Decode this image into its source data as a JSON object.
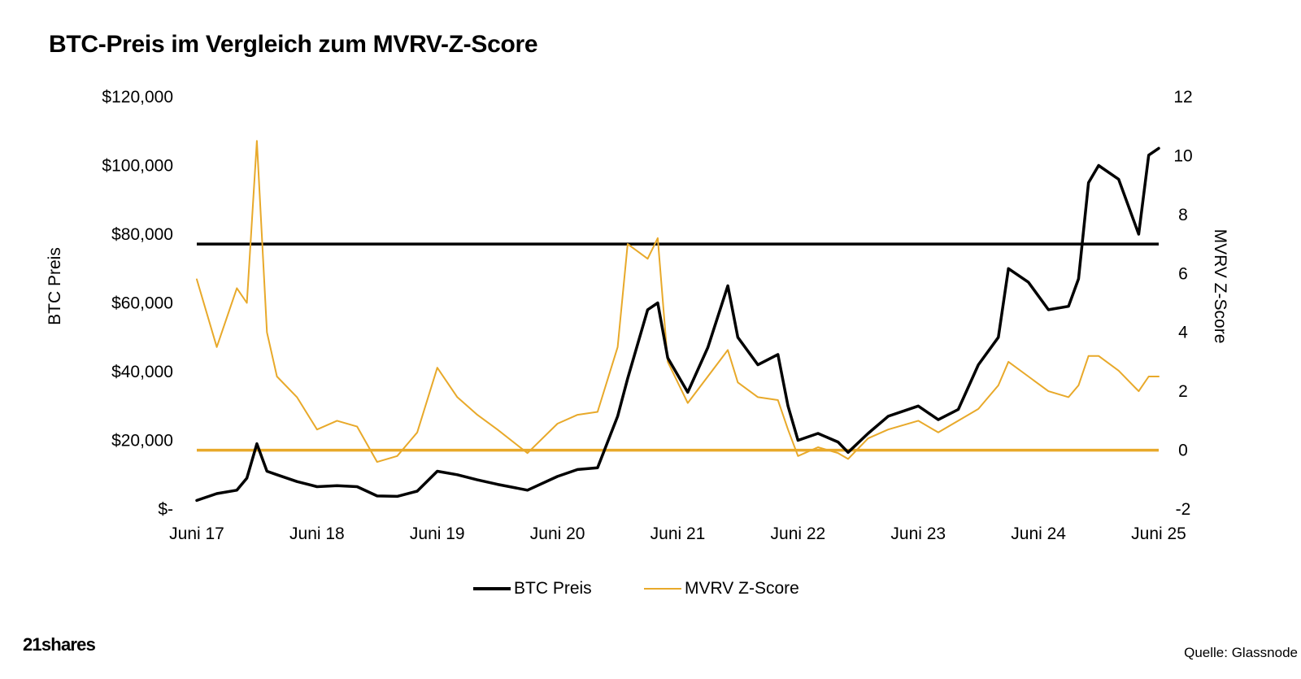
{
  "title": "BTC-Preis im Vergleich zum MVRV-Z-Score",
  "brand": "21shares",
  "source": "Quelle: Glassnode",
  "colors": {
    "btc": "#000000",
    "mvrv": "#E8A92A"
  },
  "chart_data": {
    "type": "line",
    "x_ticks": [
      "Juni 17",
      "Juni 18",
      "Juni 19",
      "Juni 20",
      "Juni 21",
      "Juni 22",
      "Juni 23",
      "Juni 24",
      "Juni 25"
    ],
    "x_tick_dates": [
      "2017-06",
      "2018-06",
      "2019-06",
      "2020-06",
      "2021-06",
      "2022-06",
      "2023-06",
      "2024-06",
      "2025-06"
    ],
    "y_left": {
      "label": "BTC Preis",
      "ticks": [
        "$-",
        "$20,000",
        "$40,000",
        "$60,000",
        "$80,000",
        "$100,000",
        "$120,000"
      ],
      "range": [
        0,
        120000
      ]
    },
    "y_right": {
      "label": "MVRV Z-Score",
      "ticks": [
        "-2",
        "0",
        "2",
        "4",
        "6",
        "8",
        "10",
        "12"
      ],
      "range": [
        -2,
        12
      ]
    },
    "reference_lines": [
      {
        "axis": "right",
        "value": 7,
        "color": "#000000"
      },
      {
        "axis": "right",
        "value": 0,
        "color": "#E8A92A"
      }
    ],
    "series": [
      {
        "name": "BTC Preis",
        "axis": "left",
        "color": "#000000",
        "x": [
          "2017-06",
          "2017-08",
          "2017-10",
          "2017-11",
          "2017-12",
          "2018-01",
          "2018-02",
          "2018-04",
          "2018-06",
          "2018-08",
          "2018-10",
          "2018-12",
          "2019-02",
          "2019-04",
          "2019-06",
          "2019-08",
          "2019-10",
          "2019-12",
          "2020-03",
          "2020-06",
          "2020-08",
          "2020-10",
          "2020-12",
          "2021-01",
          "2021-03",
          "2021-04",
          "2021-05",
          "2021-07",
          "2021-09",
          "2021-11",
          "2021-12",
          "2022-02",
          "2022-04",
          "2022-05",
          "2022-06",
          "2022-08",
          "2022-10",
          "2022-11",
          "2023-01",
          "2023-03",
          "2023-06",
          "2023-08",
          "2023-10",
          "2023-12",
          "2024-02",
          "2024-03",
          "2024-05",
          "2024-07",
          "2024-09",
          "2024-10",
          "2024-11",
          "2024-12",
          "2025-02",
          "2025-04",
          "2025-05",
          "2025-06"
        ],
        "y": [
          2500,
          4500,
          5500,
          9000,
          19000,
          11000,
          10000,
          8000,
          6500,
          6800,
          6500,
          3800,
          3700,
          5200,
          11000,
          10000,
          8500,
          7200,
          5500,
          9500,
          11500,
          12000,
          27000,
          38000,
          58000,
          60000,
          44000,
          34000,
          47000,
          65000,
          50000,
          42000,
          45000,
          30000,
          20000,
          22000,
          19500,
          16500,
          22000,
          27000,
          30000,
          26000,
          29000,
          42000,
          50000,
          70000,
          66000,
          58000,
          59000,
          67000,
          95000,
          100000,
          96000,
          80000,
          103000,
          105000
        ]
      },
      {
        "name": "MVRV Z-Score",
        "axis": "right",
        "color": "#E8A92A",
        "x": [
          "2017-06",
          "2017-08",
          "2017-10",
          "2017-11",
          "2017-12",
          "2018-01",
          "2018-02",
          "2018-04",
          "2018-06",
          "2018-08",
          "2018-10",
          "2018-12",
          "2019-02",
          "2019-04",
          "2019-06",
          "2019-08",
          "2019-10",
          "2019-12",
          "2020-03",
          "2020-06",
          "2020-08",
          "2020-10",
          "2020-12",
          "2021-01",
          "2021-03",
          "2021-04",
          "2021-05",
          "2021-07",
          "2021-09",
          "2021-11",
          "2021-12",
          "2022-02",
          "2022-04",
          "2022-05",
          "2022-06",
          "2022-08",
          "2022-10",
          "2022-11",
          "2023-01",
          "2023-03",
          "2023-06",
          "2023-08",
          "2023-10",
          "2023-12",
          "2024-02",
          "2024-03",
          "2024-05",
          "2024-07",
          "2024-09",
          "2024-10",
          "2024-11",
          "2024-12",
          "2025-02",
          "2025-04",
          "2025-05",
          "2025-06"
        ],
        "y": [
          5.8,
          3.5,
          5.5,
          5.0,
          10.5,
          4.0,
          2.5,
          1.8,
          0.7,
          1.0,
          0.8,
          -0.4,
          -0.2,
          0.6,
          2.8,
          1.8,
          1.2,
          0.7,
          -0.1,
          0.9,
          1.2,
          1.3,
          3.5,
          7.0,
          6.5,
          7.2,
          3.0,
          1.6,
          2.5,
          3.4,
          2.3,
          1.8,
          1.7,
          0.7,
          -0.2,
          0.1,
          -0.1,
          -0.3,
          0.4,
          0.7,
          1.0,
          0.6,
          1.0,
          1.4,
          2.2,
          3.0,
          2.5,
          2.0,
          1.8,
          2.2,
          3.2,
          3.2,
          2.7,
          2.0,
          2.5,
          2.5
        ]
      }
    ]
  }
}
